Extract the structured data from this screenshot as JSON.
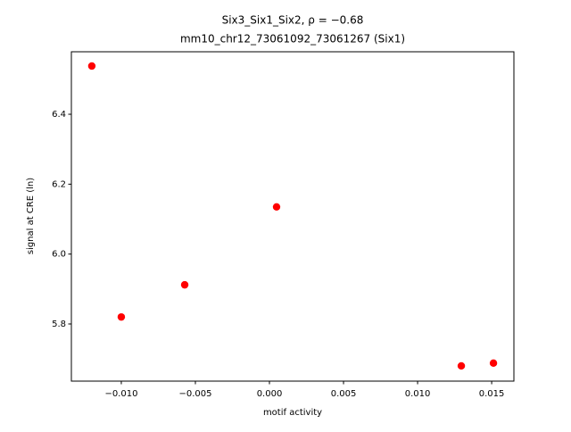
{
  "chart_data": {
    "type": "scatter",
    "title": [
      "Six3_Six1_Six2, ρ = −0.68",
      "mm10_chr12_73061092_73061267 (Six1)"
    ],
    "x_label": "motif activity",
    "y_label": "signal at CRE (ln)",
    "x": [
      -0.01199,
      -0.01,
      -0.00572,
      0.00048,
      0.01295,
      0.01512
    ],
    "y": [
      6.538,
      5.82,
      5.912,
      6.135,
      5.68,
      5.688
    ],
    "color": "#ff0000",
    "xlim": [
      -0.01337,
      0.0165
    ],
    "ylim": [
      5.6365,
      6.5788
    ],
    "xticks": [
      {
        "value": -0.01,
        "label": "−0.010"
      },
      {
        "value": -0.005,
        "label": "−0.005"
      },
      {
        "value": 0,
        "label": "0.000"
      },
      {
        "value": 0.005,
        "label": "0.005"
      },
      {
        "value": 0.01,
        "label": "0.010"
      },
      {
        "value": 0.015,
        "label": "0.015"
      }
    ],
    "yticks": [
      5.8,
      {
        "value": 6.0,
        "label": "6.0"
      },
      6.2,
      6.4
    ]
  }
}
